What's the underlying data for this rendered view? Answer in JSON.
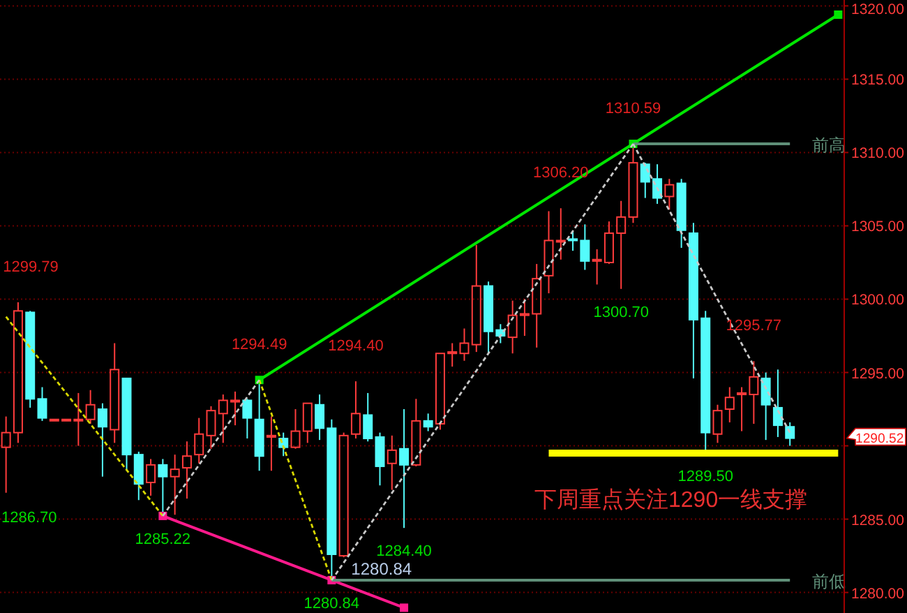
{
  "chart_data": {
    "type": "candlestick",
    "categories": [
      null,
      null,
      null,
      null,
      null,
      null,
      null,
      null,
      null,
      null,
      null,
      null,
      null,
      null,
      null,
      null,
      null,
      null,
      null,
      null,
      null,
      null,
      null,
      null,
      null,
      null,
      null,
      null,
      null,
      null,
      null,
      null,
      null,
      null,
      null,
      null,
      null,
      null,
      null,
      null,
      null,
      null,
      null,
      null,
      null,
      null,
      null,
      null,
      null,
      null,
      null,
      null,
      null,
      null,
      null,
      null,
      null,
      null,
      null,
      null,
      null,
      null,
      null,
      null,
      null,
      null,
      null,
      null,
      null,
      null
    ],
    "ohlc": [
      [
        1289.9,
        1292.0,
        1286.8,
        1290.9
      ],
      [
        1290.9,
        1299.79,
        1290.2,
        1299.2
      ],
      [
        1299.1,
        1299.2,
        1292.6,
        1293.2
      ],
      [
        1293.2,
        1294.0,
        1291.7,
        1291.9
      ],
      [
        1291.8,
        1291.8,
        1291.8,
        1291.8
      ],
      [
        1291.8,
        1291.8,
        1291.8,
        1291.8
      ],
      [
        1291.8,
        1293.6,
        1290.0,
        1291.8
      ],
      [
        1291.8,
        1293.8,
        1291.5,
        1292.8
      ],
      [
        1292.5,
        1292.9,
        1287.9,
        1291.3
      ],
      [
        1291.1,
        1297.0,
        1290.2,
        1295.2
      ],
      [
        1294.6,
        1294.6,
        1288.3,
        1289.4
      ],
      [
        1289.4,
        1289.6,
        1286.3,
        1287.4
      ],
      [
        1287.5,
        1289.1,
        1286.6,
        1288.7
      ],
      [
        1288.7,
        1289.1,
        1285.22,
        1287.9
      ],
      [
        1287.9,
        1289.4,
        1285.3,
        1288.4
      ],
      [
        1288.5,
        1290.3,
        1286.4,
        1289.3
      ],
      [
        1289.4,
        1291.9,
        1288.8,
        1290.8
      ],
      [
        1290.7,
        1292.7,
        1289.8,
        1292.4
      ],
      [
        1292.2,
        1293.5,
        1290.2,
        1293.1
      ],
      [
        1293.0,
        1293.7,
        1291.4,
        1293.1
      ],
      [
        1293.1,
        1293.2,
        1290.5,
        1291.9
      ],
      [
        1291.8,
        1294.49,
        1288.3,
        1289.3
      ],
      [
        1290.6,
        1292.0,
        1288.3,
        1290.7
      ],
      [
        1290.5,
        1290.9,
        1289.3,
        1289.9
      ],
      [
        1289.9,
        1292.5,
        1289.8,
        1291.0
      ],
      [
        1291.0,
        1292.9,
        1290.2,
        1292.9
      ],
      [
        1292.8,
        1293.5,
        1290.4,
        1291.2
      ],
      [
        1291.2,
        1291.8,
        1280.84,
        1282.6
      ],
      [
        1282.5,
        1290.9,
        1282.4,
        1290.7
      ],
      [
        1290.8,
        1294.4,
        1290.5,
        1292.2
      ],
      [
        1292.1,
        1293.6,
        1290.3,
        1290.5
      ],
      [
        1290.6,
        1290.9,
        1287.3,
        1288.6
      ],
      [
        1288.8,
        1290.7,
        1287.0,
        1289.7
      ],
      [
        1289.8,
        1292.5,
        1284.4,
        1288.7
      ],
      [
        1288.7,
        1293.2,
        1288.6,
        1291.7
      ],
      [
        1291.7,
        1292.2,
        1291.0,
        1291.3
      ],
      [
        1291.5,
        1296.3,
        1291.1,
        1296.3
      ],
      [
        1296.3,
        1297.0,
        1295.4,
        1296.4
      ],
      [
        1296.3,
        1298.0,
        1295.8,
        1297.0
      ],
      [
        1296.9,
        1303.7,
        1296.4,
        1300.9
      ],
      [
        1300.9,
        1301.2,
        1296.3,
        1297.8
      ],
      [
        1297.9,
        1298.3,
        1297.0,
        1297.5
      ],
      [
        1297.4,
        1299.9,
        1296.3,
        1298.9
      ],
      [
        1298.9,
        1300.0,
        1297.5,
        1299.0
      ],
      [
        1299.0,
        1302.4,
        1296.7,
        1301.4
      ],
      [
        1301.6,
        1306.0,
        1300.4,
        1304.0
      ],
      [
        1304.0,
        1306.2,
        1302.7,
        1304.0
      ],
      [
        1304.1,
        1304.6,
        1303.3,
        1304.0
      ],
      [
        1304.0,
        1305.1,
        1302.0,
        1302.6
      ],
      [
        1302.6,
        1303.4,
        1301.0,
        1302.7
      ],
      [
        1302.5,
        1305.3,
        1302.4,
        1304.5
      ],
      [
        1304.5,
        1306.7,
        1300.7,
        1305.6
      ],
      [
        1305.6,
        1310.59,
        1305.2,
        1309.3
      ],
      [
        1309.2,
        1309.3,
        1306.9,
        1308.0
      ],
      [
        1308.2,
        1309.2,
        1306.5,
        1306.9
      ],
      [
        1307.0,
        1308.2,
        1306.1,
        1307.8
      ],
      [
        1307.9,
        1308.2,
        1303.5,
        1304.7
      ],
      [
        1304.5,
        1305.2,
        1294.6,
        1298.6
      ],
      [
        1298.7,
        1299.2,
        1289.5,
        1290.9
      ],
      [
        1290.8,
        1292.8,
        1290.2,
        1292.4
      ],
      [
        1292.5,
        1294.0,
        1291.6,
        1293.3
      ],
      [
        1293.5,
        1294.0,
        1291.0,
        1293.6
      ],
      [
        1293.5,
        1295.77,
        1291.5,
        1294.7
      ],
      [
        1294.6,
        1295.0,
        1290.4,
        1292.8
      ],
      [
        1292.6,
        1295.2,
        1290.6,
        1291.4
      ],
      [
        1291.3,
        1291.6,
        1290.0,
        1290.52
      ],
      null,
      null,
      null,
      null
    ],
    "series": [
      {
        "type": "line",
        "color": "#00e600",
        "line_style": "solid",
        "marker": "square",
        "values": [
          null,
          null,
          null,
          null,
          null,
          null,
          null,
          null,
          null,
          null,
          null,
          null,
          null,
          null,
          null,
          null,
          null,
          null,
          null,
          null,
          null,
          1294.49,
          null,
          null,
          null,
          null,
          null,
          null,
          null,
          null,
          null,
          null,
          null,
          null,
          null,
          null,
          null,
          null,
          null,
          null,
          null,
          null,
          null,
          null,
          null,
          null,
          null,
          null,
          null,
          null,
          null,
          null,
          1310.59,
          null,
          null,
          null,
          null,
          null,
          null,
          null,
          null,
          null,
          null,
          null,
          null,
          null,
          null,
          null,
          null,
          1319.4
        ]
      },
      {
        "type": "line",
        "color": "#ff1a8c",
        "line_style": "solid",
        "marker": "square",
        "values": [
          null,
          null,
          null,
          null,
          null,
          null,
          null,
          null,
          null,
          null,
          null,
          null,
          null,
          1285.22,
          null,
          null,
          null,
          null,
          null,
          null,
          null,
          null,
          null,
          null,
          null,
          null,
          null,
          1280.84,
          null,
          null,
          null,
          null,
          null,
          1278.96,
          null,
          null,
          null,
          null,
          null,
          null,
          null,
          null,
          null,
          null,
          null,
          null,
          null,
          null,
          null,
          null,
          null,
          null,
          null,
          null,
          null,
          null,
          null,
          null,
          null,
          null,
          null,
          null,
          null,
          null,
          null,
          null,
          null,
          null,
          null,
          null
        ]
      },
      {
        "type": "line",
        "color": "#d8d800",
        "line_style": "dotted",
        "values": [
          1298.8,
          null,
          null,
          null,
          null,
          null,
          null,
          null,
          null,
          null,
          null,
          null,
          null,
          1285.22,
          null,
          null,
          null,
          null,
          null,
          null,
          null,
          null,
          null,
          null,
          null,
          null,
          null,
          null,
          null,
          null,
          null,
          null,
          null,
          null,
          null,
          null,
          null,
          null,
          null,
          null,
          null,
          null,
          null,
          null,
          null,
          null,
          null,
          null,
          null,
          null,
          null,
          null,
          null,
          null,
          null,
          null,
          null,
          null,
          null,
          null,
          null,
          null,
          null,
          null,
          null,
          null,
          null,
          null,
          null,
          null
        ]
      },
      {
        "type": "line",
        "color": "#d8d800",
        "line_style": "dotted",
        "values": [
          null,
          null,
          null,
          null,
          null,
          null,
          null,
          null,
          null,
          null,
          null,
          null,
          null,
          null,
          null,
          null,
          null,
          null,
          null,
          null,
          null,
          1294.49,
          null,
          null,
          null,
          null,
          null,
          1280.84,
          null,
          null,
          null,
          null,
          null,
          null,
          null,
          null,
          null,
          null,
          null,
          null,
          null,
          null,
          null,
          null,
          null,
          null,
          null,
          null,
          null,
          null,
          null,
          null,
          null,
          null,
          null,
          null,
          null,
          null,
          null,
          null,
          null,
          null,
          null,
          null,
          null,
          null,
          null,
          null,
          null,
          null
        ]
      },
      {
        "type": "line",
        "color": "#c8c8c8",
        "line_style": "dotted",
        "values": [
          null,
          null,
          null,
          null,
          null,
          null,
          null,
          null,
          null,
          null,
          null,
          null,
          null,
          1285.22,
          null,
          null,
          null,
          null,
          null,
          null,
          null,
          1294.49,
          null,
          null,
          null,
          null,
          null,
          null,
          null,
          null,
          null,
          null,
          null,
          null,
          null,
          null,
          null,
          null,
          null,
          null,
          null,
          null,
          null,
          null,
          null,
          null,
          null,
          null,
          null,
          null,
          null,
          null,
          null,
          null,
          null,
          null,
          null,
          null,
          null,
          null,
          null,
          null,
          null,
          null,
          null,
          null,
          null,
          null,
          null,
          null
        ]
      },
      {
        "type": "line",
        "color": "#c8c8c8",
        "line_style": "dotted",
        "values": [
          null,
          null,
          null,
          null,
          null,
          null,
          null,
          null,
          null,
          null,
          null,
          null,
          null,
          null,
          null,
          null,
          null,
          null,
          null,
          null,
          null,
          null,
          null,
          null,
          null,
          null,
          null,
          1280.84,
          null,
          null,
          null,
          null,
          null,
          null,
          null,
          null,
          null,
          null,
          null,
          null,
          null,
          null,
          null,
          null,
          null,
          null,
          null,
          null,
          null,
          null,
          null,
          null,
          1310.59,
          null,
          null,
          null,
          null,
          null,
          null,
          null,
          null,
          null,
          null,
          null,
          null,
          null,
          null,
          null,
          null,
          null
        ]
      },
      {
        "type": "line",
        "color": "#c8c8c8",
        "line_style": "dotted",
        "values": [
          null,
          null,
          null,
          null,
          null,
          null,
          null,
          null,
          null,
          null,
          null,
          null,
          null,
          null,
          null,
          null,
          null,
          null,
          null,
          null,
          null,
          null,
          null,
          null,
          null,
          null,
          null,
          null,
          null,
          null,
          null,
          null,
          null,
          null,
          null,
          null,
          null,
          null,
          null,
          null,
          null,
          null,
          null,
          null,
          null,
          null,
          null,
          null,
          null,
          null,
          null,
          null,
          1310.59,
          null,
          null,
          null,
          null,
          null,
          null,
          null,
          null,
          null,
          null,
          null,
          null,
          1290.9,
          null,
          null,
          null,
          null
        ]
      },
      {
        "type": "line",
        "name": "前高",
        "color": "#5f8f78",
        "line_style": "solid",
        "values": [
          null,
          null,
          null,
          null,
          null,
          null,
          null,
          null,
          null,
          null,
          null,
          null,
          null,
          null,
          null,
          null,
          null,
          null,
          null,
          null,
          null,
          null,
          null,
          null,
          null,
          null,
          null,
          null,
          null,
          null,
          null,
          null,
          null,
          null,
          null,
          null,
          null,
          null,
          null,
          null,
          null,
          null,
          null,
          null,
          null,
          null,
          null,
          null,
          null,
          null,
          null,
          null,
          1310.59,
          null,
          null,
          null,
          null,
          null,
          null,
          null,
          null,
          null,
          null,
          null,
          null,
          1310.59,
          null,
          null,
          null,
          null
        ]
      },
      {
        "type": "line",
        "name": "前低",
        "color": "#5f8f78",
        "line_style": "solid",
        "values": [
          null,
          null,
          null,
          null,
          null,
          null,
          null,
          null,
          null,
          null,
          null,
          null,
          null,
          null,
          null,
          null,
          null,
          null,
          null,
          null,
          null,
          null,
          null,
          null,
          null,
          null,
          null,
          1280.84,
          null,
          null,
          null,
          null,
          null,
          null,
          null,
          null,
          null,
          null,
          null,
          null,
          null,
          null,
          null,
          null,
          null,
          null,
          null,
          null,
          null,
          null,
          null,
          null,
          null,
          null,
          null,
          null,
          null,
          null,
          null,
          null,
          null,
          null,
          null,
          null,
          null,
          1280.84,
          null,
          null,
          null,
          null
        ],
        "value_labels": [
          null,
          null,
          null,
          null,
          null,
          null,
          null,
          null,
          null,
          null,
          null,
          null,
          null,
          null,
          null,
          null,
          null,
          null,
          null,
          null,
          null,
          null,
          null,
          null,
          null,
          null,
          null,
          "1280.84",
          null,
          null,
          null,
          null,
          null,
          null,
          null,
          null,
          null,
          null,
          null,
          null,
          null,
          null,
          null,
          null,
          null,
          null,
          null,
          null,
          null,
          null,
          null,
          null,
          null,
          null,
          null,
          null,
          null,
          null,
          null,
          null,
          null,
          null,
          null,
          null,
          null,
          null,
          null,
          null,
          null,
          null
        ]
      },
      {
        "type": "line",
        "color": "#ffff00",
        "line_style": "solid",
        "values": [
          null,
          null,
          null,
          null,
          null,
          null,
          null,
          null,
          null,
          null,
          null,
          null,
          null,
          null,
          null,
          null,
          null,
          null,
          null,
          null,
          null,
          null,
          null,
          null,
          null,
          null,
          null,
          null,
          null,
          null,
          null,
          null,
          null,
          null,
          null,
          null,
          null,
          null,
          null,
          null,
          null,
          null,
          null,
          null,
          null,
          1289.5,
          null,
          null,
          null,
          null,
          null,
          null,
          null,
          null,
          null,
          null,
          null,
          null,
          null,
          null,
          null,
          null,
          null,
          null,
          null,
          null,
          null,
          null,
          null,
          1289.5
        ]
      }
    ],
    "ylim": [
      1278.6,
      1320.4
    ],
    "yticks": [
      {
        "value": 1280,
        "label": "1280.00"
      },
      {
        "value": 1285,
        "label": "1285.00"
      },
      {
        "value": 1290,
        "label": null
      },
      {
        "value": 1295,
        "label": "1295.00"
      },
      {
        "value": 1300,
        "label": "1300.00"
      },
      {
        "value": 1305,
        "label": "1305.00"
      },
      {
        "value": 1310,
        "label": "1310.00"
      },
      {
        "value": 1315,
        "label": "1315.00"
      },
      {
        "value": 1320,
        "label": "1320.00"
      }
    ],
    "grid": "y",
    "tick_labels": "y",
    "annotations": [
      "1299.79",
      "1286.70",
      "1290.52",
      {
        "text": "1285.22",
        "y": 1285.22
      },
      {
        "text": "1294.49",
        "y": 1294.49
      },
      {
        "text": "1280.84",
        "y": 1280.84
      },
      {
        "text": "1294.40",
        "y": 1294.4
      },
      {
        "text": "1284.40",
        "y": 1284.4
      },
      {
        "text": "1306.20",
        "y": 1306.2
      },
      {
        "text": "1310.59",
        "y": 1310.59
      },
      {
        "text": "1300.70",
        "y": 1300.7
      },
      {
        "text": "1295.77",
        "y": 1295.77
      },
      {
        "text": "1289.50",
        "y": 1289.5
      },
      "下周重点关注1290一线支撑"
    ]
  }
}
